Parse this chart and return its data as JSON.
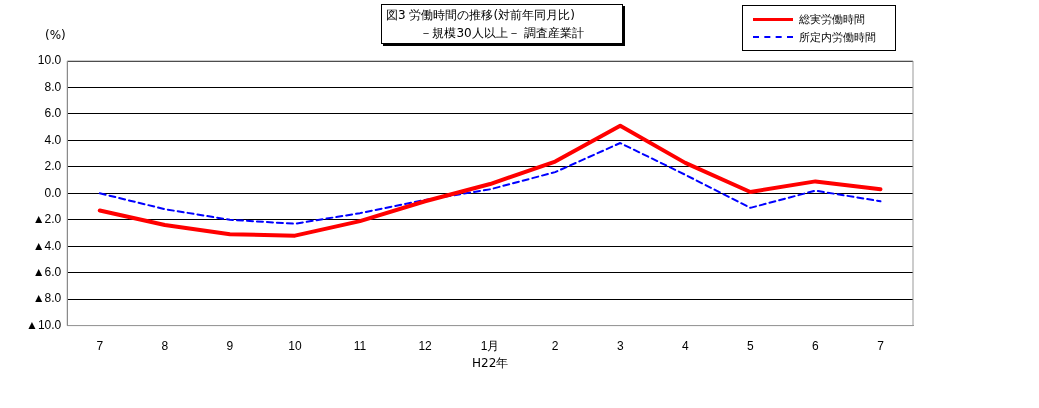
{
  "chart_data": {
    "type": "line",
    "title": "図3 労働時間の推移(対前年同月比)",
    "subtitle": "－規模30人以上－ 調査産業計",
    "ylabel": "(%)",
    "categories": [
      "7",
      "8",
      "9",
      "10",
      "11",
      "12",
      "1月",
      "2",
      "3",
      "4",
      "5",
      "6",
      "7"
    ],
    "series": [
      {
        "name": "総実労働時間",
        "color": "#ff0000",
        "line_style": "solid",
        "values": [
          -1.3,
          -2.4,
          -3.1,
          -3.2,
          -2.1,
          -0.6,
          0.7,
          2.4,
          5.1,
          2.3,
          0.1,
          0.9,
          0.3
        ]
      },
      {
        "name": "所定内労働時間",
        "color": "#0000ff",
        "line_style": "dashed",
        "values": [
          0.0,
          -1.2,
          -2.0,
          -2.3,
          -1.5,
          -0.5,
          0.3,
          1.6,
          3.8,
          1.4,
          -1.1,
          0.2,
          -0.6
        ]
      }
    ],
    "ylim": [
      -10,
      10
    ],
    "yticks": [
      {
        "value": -10,
        "label": "▲10.0"
      },
      {
        "value": -8,
        "label": "▲8.0"
      },
      {
        "value": -6,
        "label": "▲6.0"
      },
      {
        "value": -4,
        "label": "▲4.0"
      },
      {
        "value": -2,
        "label": "▲2.0"
      },
      {
        "value": 0,
        "label": "0.0"
      },
      {
        "value": 2,
        "label": "2.0"
      },
      {
        "value": 4,
        "label": "4.0"
      },
      {
        "value": 6,
        "label": "6.0"
      },
      {
        "value": 8,
        "label": "8.0"
      },
      {
        "value": 10,
        "label": "10.0"
      }
    ],
    "annotations": [
      "H22年"
    ],
    "grid": "y",
    "legend": "top right",
    "marker": "none"
  }
}
